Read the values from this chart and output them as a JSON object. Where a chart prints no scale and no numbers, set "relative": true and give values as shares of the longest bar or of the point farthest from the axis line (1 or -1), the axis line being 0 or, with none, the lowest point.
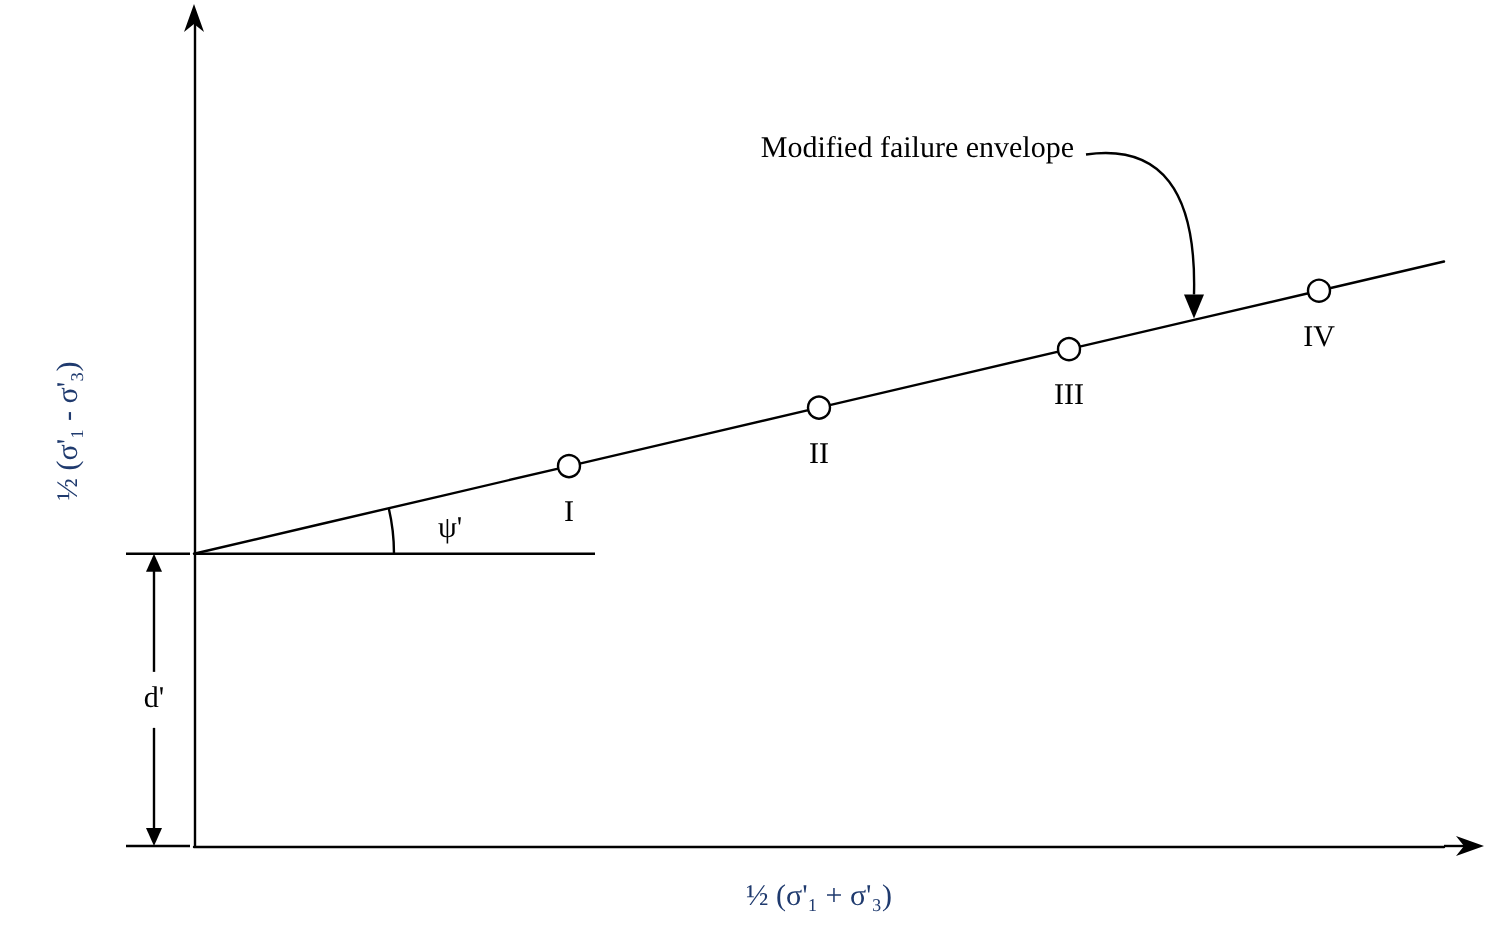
{
  "chart_data": {
    "type": "line",
    "relative": true,
    "grid": false,
    "xlabel": "½ (σ'₁ + σ'₃)",
    "ylabel": "½ (σ'₁ - σ'₃)",
    "categories": [
      null,
      null,
      null,
      null,
      null,
      null,
      null,
      null,
      null,
      null,
      null
    ],
    "series": [
      {
        "color": "#000000",
        "values": [
          0.5,
          0.55,
          0.6,
          0.65,
          0.7,
          0.75,
          0.8,
          0.85,
          0.9,
          0.95,
          1.0
        ]
      }
    ],
    "annotations": [
      "Modified failure envelope",
      "ψ'",
      "d'",
      {
        "text": "I",
        "y": 0.65
      },
      {
        "text": "II",
        "y": 0.75
      },
      {
        "text": "III",
        "y": 0.85
      },
      {
        "text": "IV",
        "y": 0.95
      }
    ]
  }
}
